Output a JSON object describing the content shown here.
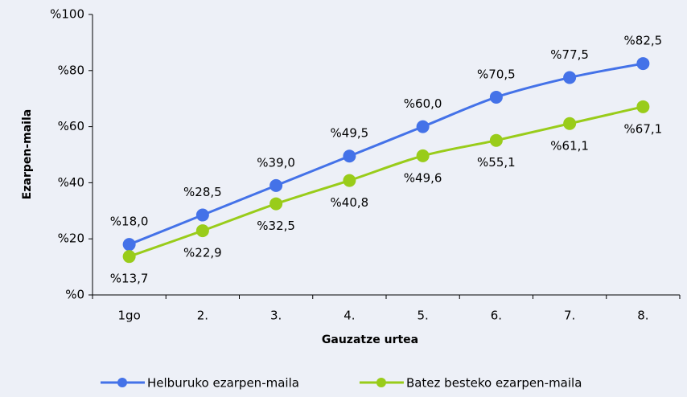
{
  "chart_data": {
    "type": "line",
    "xlabel": "Gauzatze urtea",
    "ylabel": "Ezarpen-maila",
    "categories": [
      "1go",
      "2.",
      "3.",
      "4.",
      "5.",
      "6.",
      "7.",
      "8."
    ],
    "series": [
      {
        "name": "Helburuko ezarpen-maila",
        "color": "#4472e8",
        "values": [
          18.0,
          28.5,
          39.0,
          49.5,
          60.0,
          70.5,
          77.5,
          82.5
        ],
        "value_labels": [
          "%18,0",
          "%28,5",
          "%39,0",
          "%49,5",
          "%60,0",
          "%70,5",
          "%77,5",
          "%82,5"
        ]
      },
      {
        "name": "Batez besteko ezarpen-maila",
        "color": "#99cc1a",
        "values": [
          13.7,
          22.9,
          32.5,
          40.8,
          49.6,
          55.1,
          61.1,
          67.1
        ],
        "value_labels": [
          "%13,7",
          "%22,9",
          "%32,5",
          "%40,8",
          "%49,6",
          "%55,1",
          "%61,1",
          "%67,1"
        ]
      }
    ],
    "ylim": [
      0,
      100
    ],
    "yticks": [
      {
        "value": 0,
        "label": "%0"
      },
      {
        "value": 20,
        "label": "%20"
      },
      {
        "value": 40,
        "label": "%40"
      },
      {
        "value": 60,
        "label": "%60"
      },
      {
        "value": 80,
        "label": "%80"
      },
      {
        "value": 100,
        "label": "%100"
      }
    ],
    "legend": "bottom"
  }
}
